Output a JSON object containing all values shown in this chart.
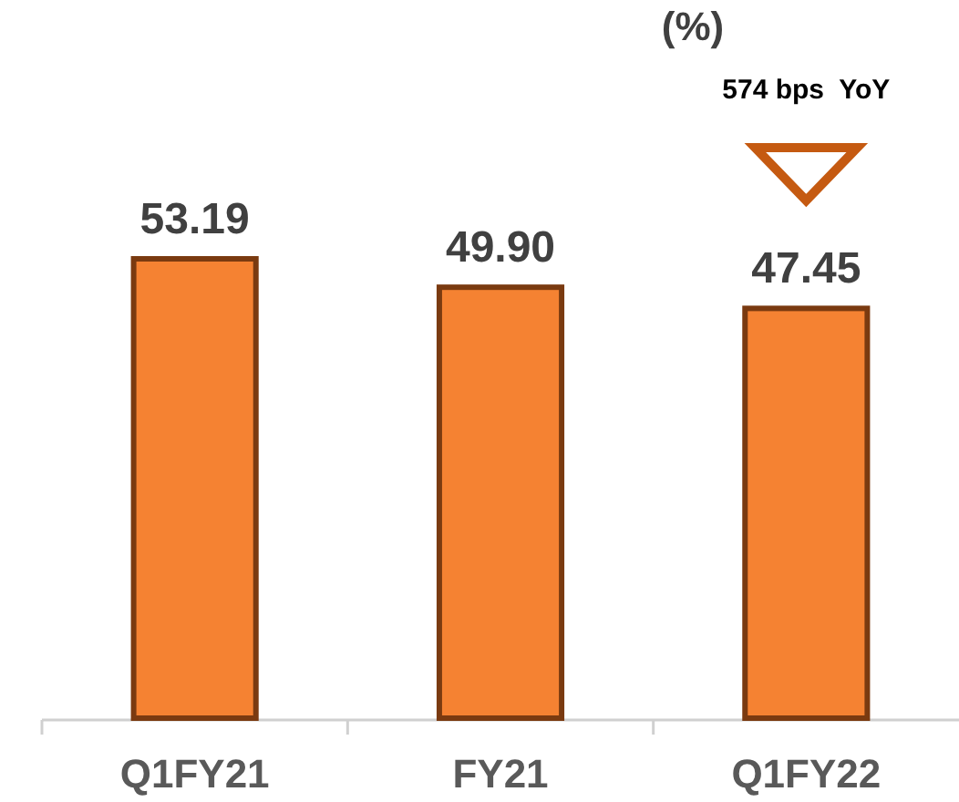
{
  "chart_data": {
    "type": "bar",
    "title": "(%)",
    "categories": [
      "Q1FY21",
      "FY21",
      "Q1FY22"
    ],
    "values": [
      53.19,
      49.9,
      47.45
    ],
    "value_labels": [
      "53.19",
      "49.90",
      "47.45"
    ],
    "color": "#f58232",
    "annotations": [
      "574 bps  YoY"
    ]
  }
}
